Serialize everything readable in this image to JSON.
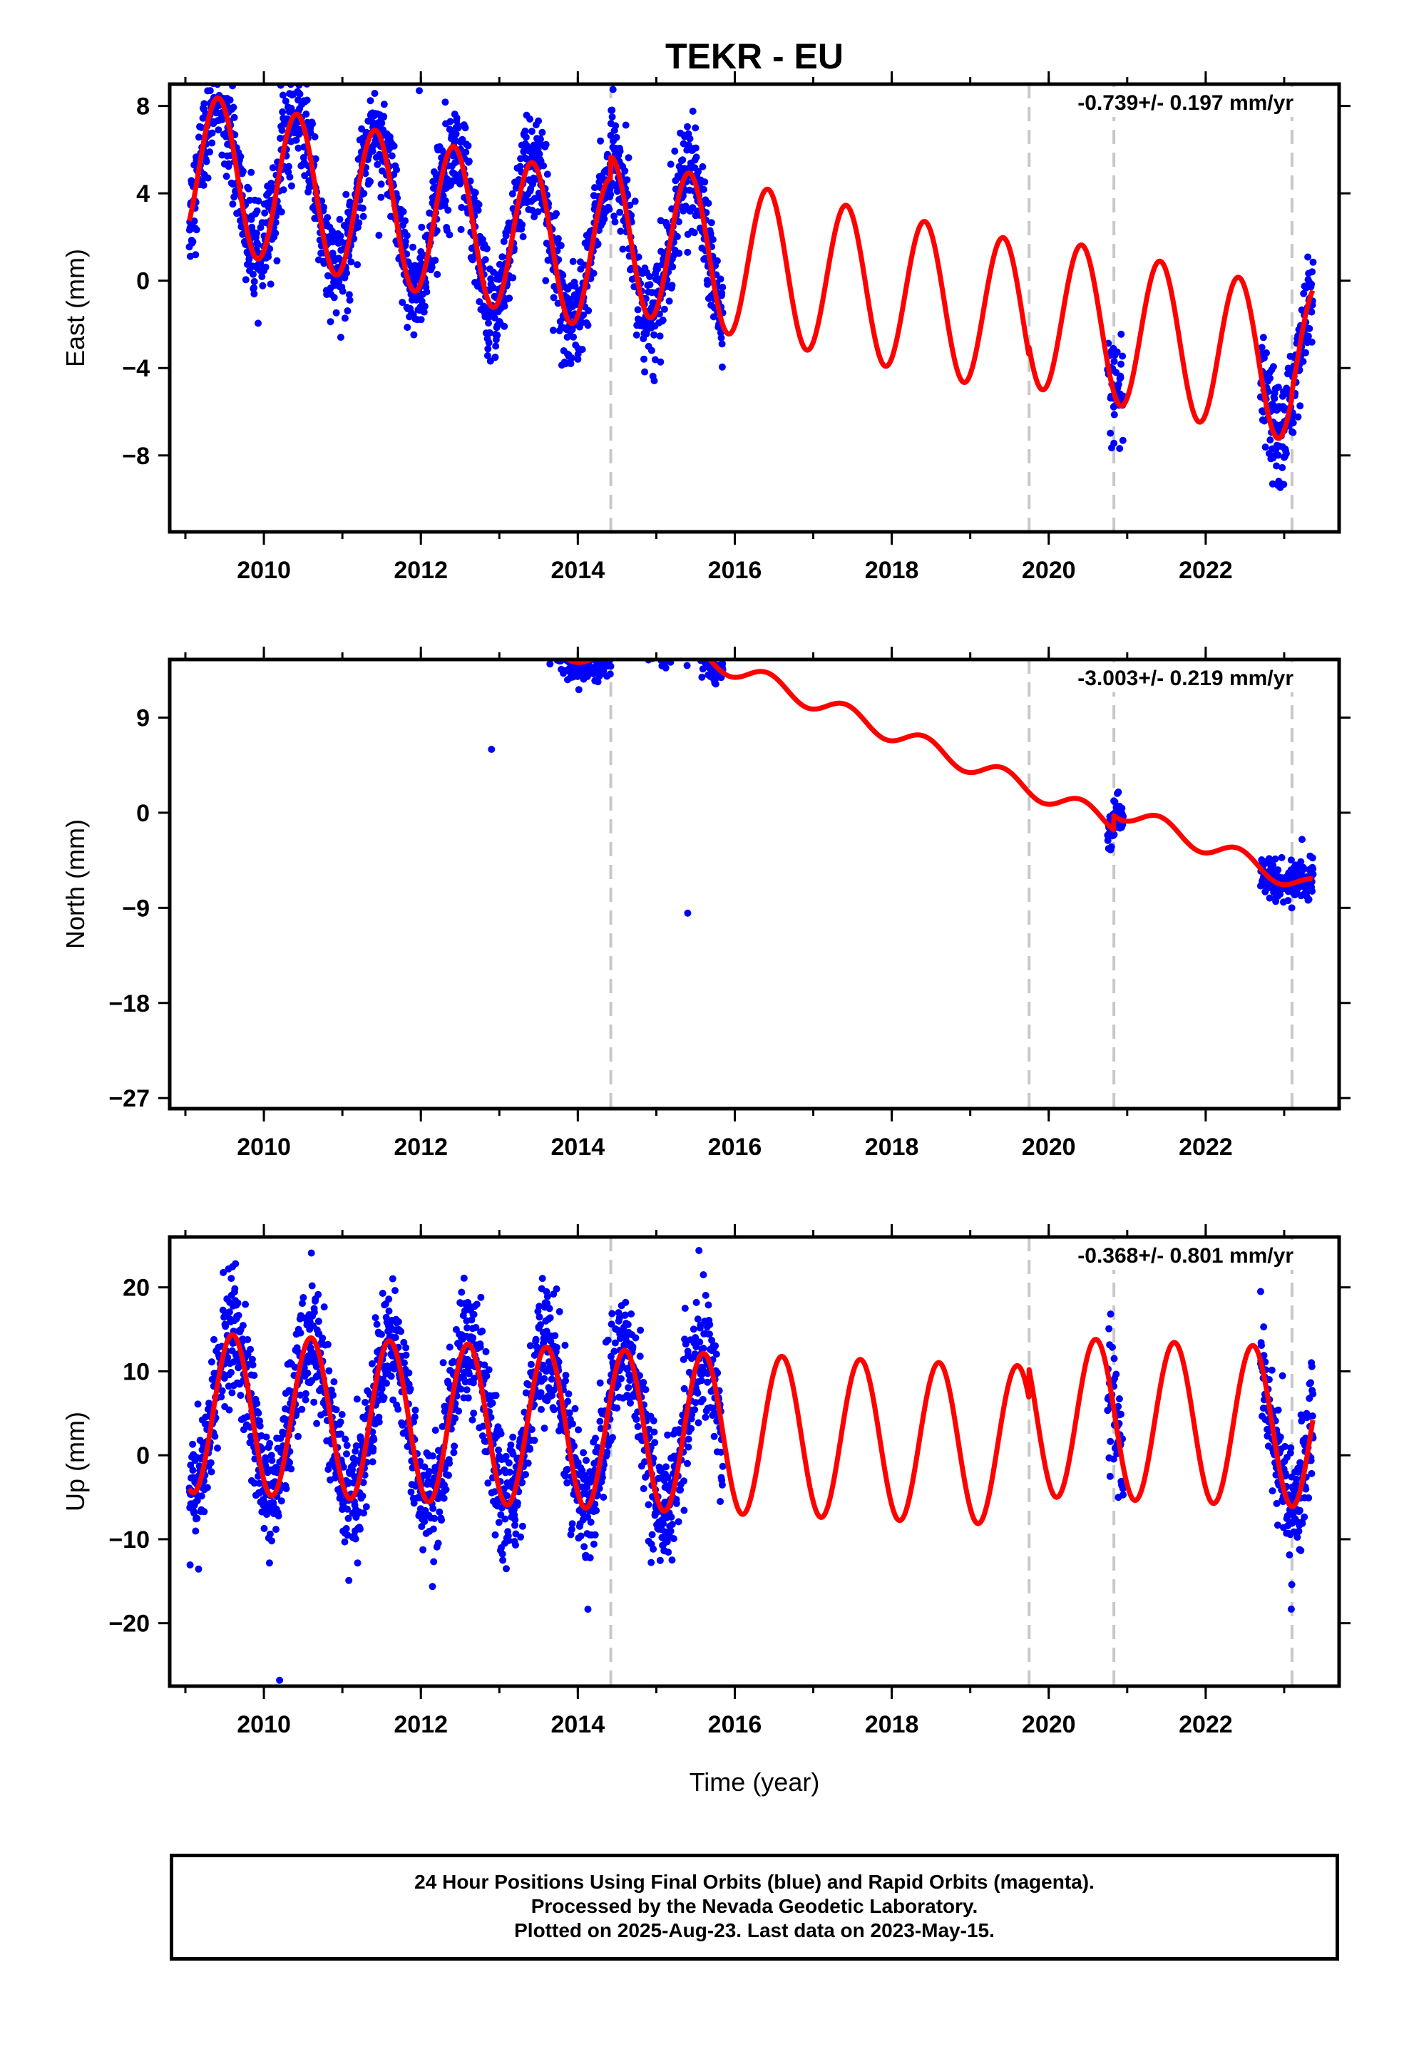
{
  "title": "TEKR - EU",
  "xlabel": "Time (year)",
  "footer": {
    "line1": "24 Hour Positions Using Final Orbits (blue) and Rapid Orbits (magenta).",
    "line2": "Processed by the Nevada Geodetic Laboratory.",
    "line3": "Plotted on 2025-Aug-23. Last data on 2023-May-15."
  },
  "colors": {
    "data": "#0000ff",
    "model": "#ff0000",
    "breaks": "#c8c8c8",
    "frame": "#000000"
  },
  "chart_data": [
    {
      "type": "scatter",
      "component": "east",
      "ylabel": "East (mm)",
      "rate_label": "-0.739+/- 0.197 mm/yr",
      "xlim": [
        2008.8,
        2023.7
      ],
      "ylim": [
        -11.5,
        9.0
      ],
      "xticks": [
        2010,
        2012,
        2014,
        2016,
        2018,
        2020,
        2022
      ],
      "yticks": [
        8,
        4,
        0,
        -4,
        -8
      ],
      "ytick_labels": [
        "8",
        "4",
        "0",
        "−4",
        "−8"
      ],
      "breaks": [
        2014.42,
        2019.75,
        2020.83,
        2023.1
      ],
      "data_segments": [
        [
          2009.05,
          2015.85
        ],
        [
          2020.75,
          2020.95
        ],
        [
          2022.7,
          2023.37
        ]
      ],
      "model": {
        "intercept": 0.0,
        "rate": -0.739,
        "annual_amp": 3.5,
        "annual_peak": 2009.42,
        "offsets": [
          {
            "t": 2014.42,
            "dy": 1.0
          },
          {
            "t": 2019.75,
            "dy": 0.4
          },
          {
            "t": 2023.1,
            "dy": 0.3
          }
        ]
      },
      "noise": 1.15,
      "outliers": [
        {
          "x": 2011.98,
          "y": 8.7
        }
      ]
    },
    {
      "type": "scatter",
      "component": "north",
      "ylabel": "North (mm)",
      "rate_label": "-3.003+/- 0.219 mm/yr",
      "xlim": [
        2008.8,
        2023.7
      ],
      "ylim": [
        -28.0,
        14.5
      ],
      "xticks": [
        2010,
        2012,
        2014,
        2016,
        2018,
        2020,
        2022
      ],
      "yticks": [
        9,
        0,
        -9,
        -18,
        -27
      ],
      "ytick_labels": [
        "9",
        "0",
        "−9",
        "−18",
        "−27"
      ],
      "breaks": [
        2014.42,
        2019.75,
        2020.83,
        2023.1
      ],
      "data_segments": [
        [
          2009.05,
          2015.85
        ],
        [
          2020.75,
          2020.95
        ],
        [
          2022.7,
          2023.37
        ]
      ],
      "model": {
        "intercept": 9.0,
        "rate": -3.003,
        "annual_amp": 0.9,
        "annual_peak": 2009.42,
        "offsets": [
          {
            "t": 2014.42,
            "dy": 4.6
          },
          {
            "t": 2020.83,
            "dy": 1.4
          }
        ]
      },
      "noise": 0.9,
      "outliers": [
        {
          "x": 2012.9,
          "y": 6.0
        },
        {
          "x": 2015.4,
          "y": -9.5
        }
      ]
    },
    {
      "type": "scatter",
      "component": "up",
      "ylabel": "Up (mm)",
      "rate_label": "-0.368+/- 0.801 mm/yr",
      "xlim": [
        2008.8,
        2023.7
      ],
      "ylim": [
        -27.5,
        26.0
      ],
      "xticks": [
        2010,
        2012,
        2014,
        2016,
        2018,
        2020,
        2022
      ],
      "yticks": [
        20,
        10,
        0,
        -10,
        -20
      ],
      "ytick_labels": [
        "20",
        "10",
        "0",
        "−10",
        "−20"
      ],
      "breaks": [
        2014.42,
        2019.75,
        2020.83,
        2023.1
      ],
      "data_segments": [
        [
          2009.05,
          2015.85
        ],
        [
          2020.75,
          2020.95
        ],
        [
          2022.7,
          2023.37
        ]
      ],
      "model": {
        "intercept": 2.5,
        "rate": -0.368,
        "annual_amp": 9.5,
        "annual_peak": 2009.6,
        "offsets": [
          {
            "t": 2019.75,
            "dy": 3.5
          }
        ]
      },
      "noise": 3.6,
      "outliers": [
        {
          "x": 2010.2,
          "y": -26.8
        },
        {
          "x": 2015.6,
          "y": 21.5
        },
        {
          "x": 2022.7,
          "y": 19.5
        }
      ]
    }
  ]
}
